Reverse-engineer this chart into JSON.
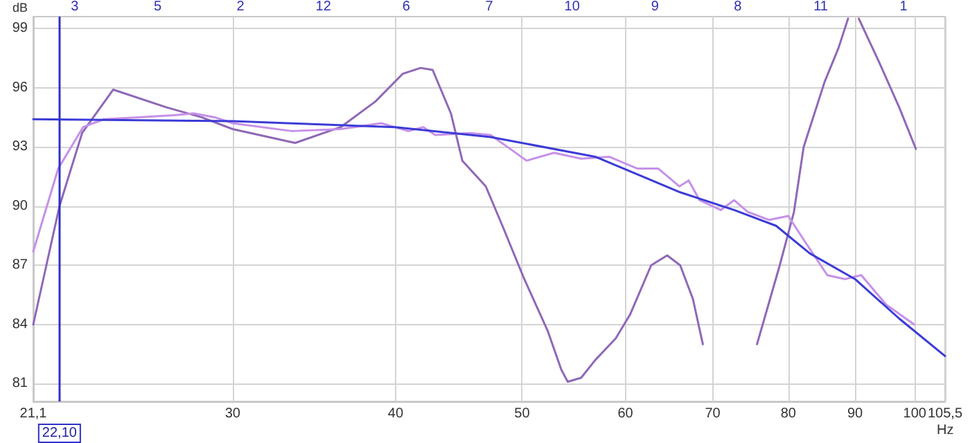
{
  "chart_data": {
    "type": "line",
    "xlabel": "Hz",
    "ylabel": "dB",
    "log": "x",
    "grid": true,
    "marker": "none",
    "line_style": "solid",
    "xlim": [
      21.1,
      105.5
    ],
    "xticks": [
      {
        "value": 21.1,
        "label": "21,1"
      },
      30,
      40,
      50,
      60,
      70,
      80,
      90,
      100,
      {
        "value": 105.5,
        "label": "105,5"
      }
    ],
    "ylim": [
      80.1,
      99.6
    ],
    "yticks": [
      81,
      84,
      87,
      90,
      93,
      96,
      99
    ],
    "ref_lines": [
      {
        "axis": "x",
        "value": 22.1,
        "label": "22,10",
        "color": "#3030c8"
      }
    ],
    "annotations": [
      "3",
      "5",
      "2",
      "12",
      "6",
      "7",
      "10",
      "9",
      "8",
      "11",
      "1"
    ],
    "series": [
      {
        "color": "#8e68b8",
        "x": [
          21.1,
          22.1,
          23.0,
          24.3,
          26.7,
          28.4,
          30,
          33.5,
          36.3,
          38.6,
          40.5,
          41.8,
          42.7,
          44.1,
          45.0,
          46.9,
          48.3,
          50.2,
          52.3,
          53.6,
          54.2,
          55.5,
          56.9,
          59.0,
          60.5,
          62.8,
          64.6,
          66.1,
          67.6,
          68.8,
          70.2,
          71.5,
          72.7,
          75.7,
          78.8,
          80.8,
          82.2,
          85.3,
          87.4,
          88.9,
          89.8,
          90.6,
          93.9,
          97.3,
          100.2
        ],
        "values": [
          84.0,
          90.0,
          93.7,
          95.9,
          95.0,
          94.5,
          93.9,
          93.2,
          94.0,
          95.3,
          96.7,
          97.0,
          96.9,
          94.7,
          92.3,
          91.0,
          89.0,
          86.3,
          83.7,
          81.7,
          81.1,
          81.3,
          82.2,
          83.3,
          84.5,
          87.0,
          87.5,
          87.0,
          85.3,
          83.0,
          null,
          null,
          null,
          83.0,
          87.0,
          89.7,
          93.0,
          96.3,
          98.0,
          99.5,
          null,
          99.5,
          97.3,
          95.0,
          92.9
        ]
      },
      {
        "color": "#c690e8",
        "x": [
          21.1,
          22.05,
          23.04,
          23.9,
          25.4,
          27.0,
          28.0,
          29.06,
          30,
          33.3,
          36.3,
          39.0,
          40.9,
          42.0,
          42.9,
          45.6,
          47.3,
          49.2,
          50.4,
          52.9,
          55.5,
          58.3,
          61.3,
          63.6,
          66.0,
          67.1,
          68.4,
          71.0,
          72.7,
          74.5,
          77.3,
          80.0,
          82.2,
          85.7,
          88.4,
          91.0,
          95.1,
          99.9
        ],
        "values": [
          87.7,
          91.9,
          94.0,
          94.4,
          94.5,
          94.6,
          94.7,
          94.5,
          94.2,
          93.8,
          93.9,
          94.2,
          93.8,
          94.0,
          93.6,
          93.7,
          93.6,
          92.8,
          92.3,
          92.7,
          92.4,
          92.5,
          91.9,
          91.9,
          91.0,
          91.3,
          90.3,
          89.8,
          90.3,
          89.7,
          89.3,
          89.5,
          88.3,
          86.5,
          86.3,
          86.5,
          85.0,
          84.0
        ]
      },
      {
        "color": "#3b3bd6",
        "x": [
          21.1,
          30,
          40,
          47.3,
          56.9,
          66.1,
          72.7,
          78.3,
          83.1,
          90,
          97.3,
          105.5
        ],
        "values": [
          94.4,
          94.3,
          94.0,
          93.5,
          92.5,
          90.7,
          89.8,
          89.0,
          87.6,
          86.3,
          84.3,
          82.4
        ]
      }
    ]
  }
}
